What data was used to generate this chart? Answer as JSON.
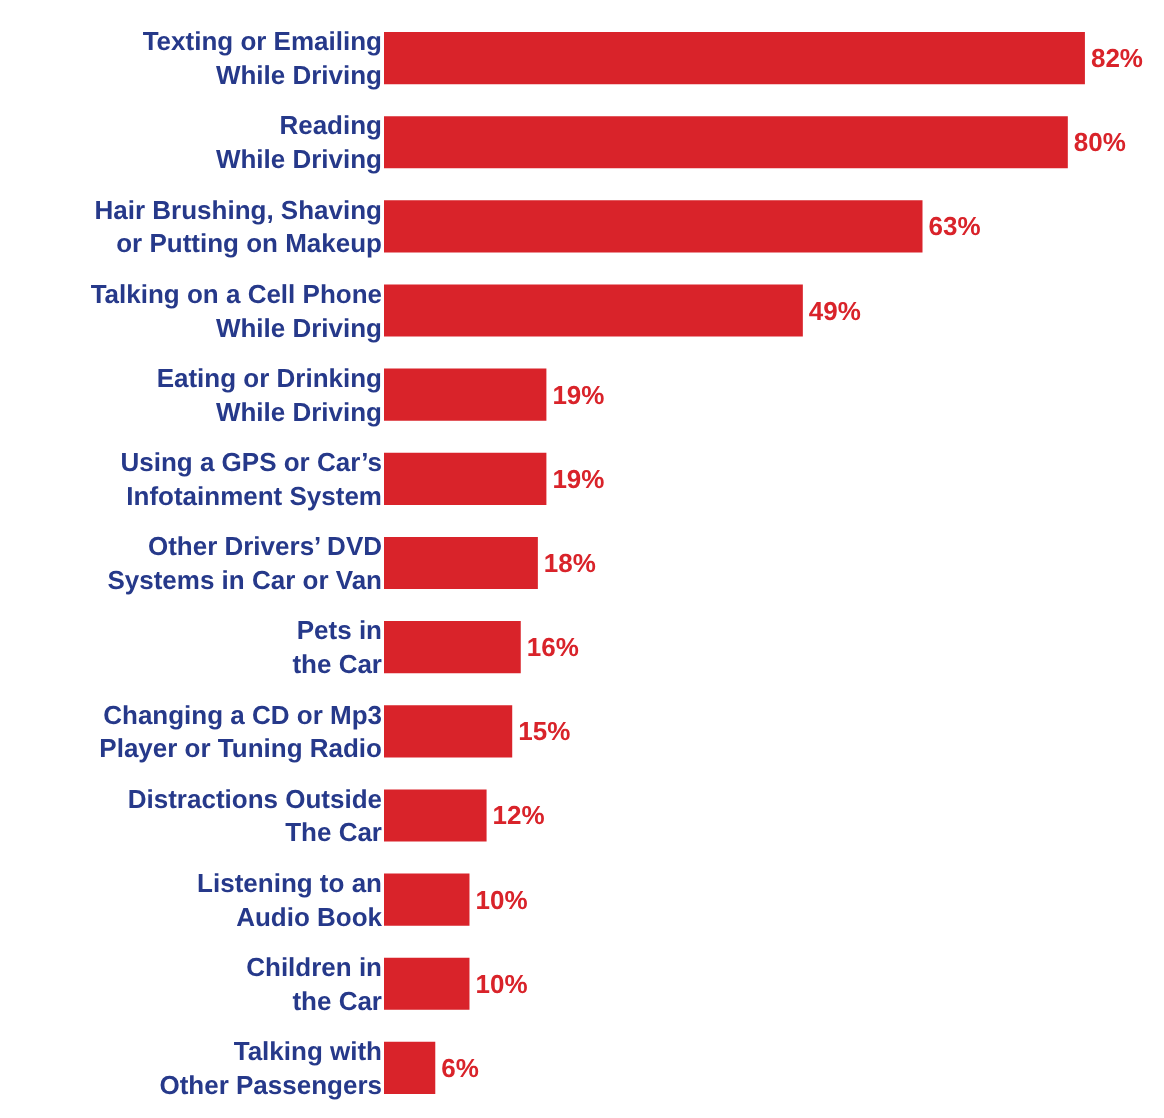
{
  "chart_data": {
    "type": "bar",
    "orientation": "horizontal",
    "categories": [
      "Texting or Emailing\nWhile Driving",
      "Reading\nWhile Driving",
      "Hair Brushing, Shaving\nor Putting on Makeup",
      "Talking on a Cell Phone\nWhile Driving",
      "Eating or Drinking\nWhile Driving",
      "Using a GPS or Car’s\nInfotainment System",
      "Other Drivers’ DVD\nSystems in Car or Van",
      "Pets in\nthe Car",
      "Changing a CD or Mp3\nPlayer or Tuning Radio",
      "Distractions Outside\nThe Car",
      "Listening to an\nAudio Book",
      "Children in\nthe Car",
      "Talking with\nOther Passengers"
    ],
    "values": [
      82,
      80,
      63,
      49,
      19,
      19,
      18,
      16,
      15,
      12,
      10,
      10,
      6
    ],
    "value_labels": [
      "82%",
      "80%",
      "63%",
      "49%",
      "19%",
      "19%",
      "18%",
      "16%",
      "15%",
      "12%",
      "10%",
      "10%",
      "6%"
    ],
    "color": "#d9232a"
  }
}
